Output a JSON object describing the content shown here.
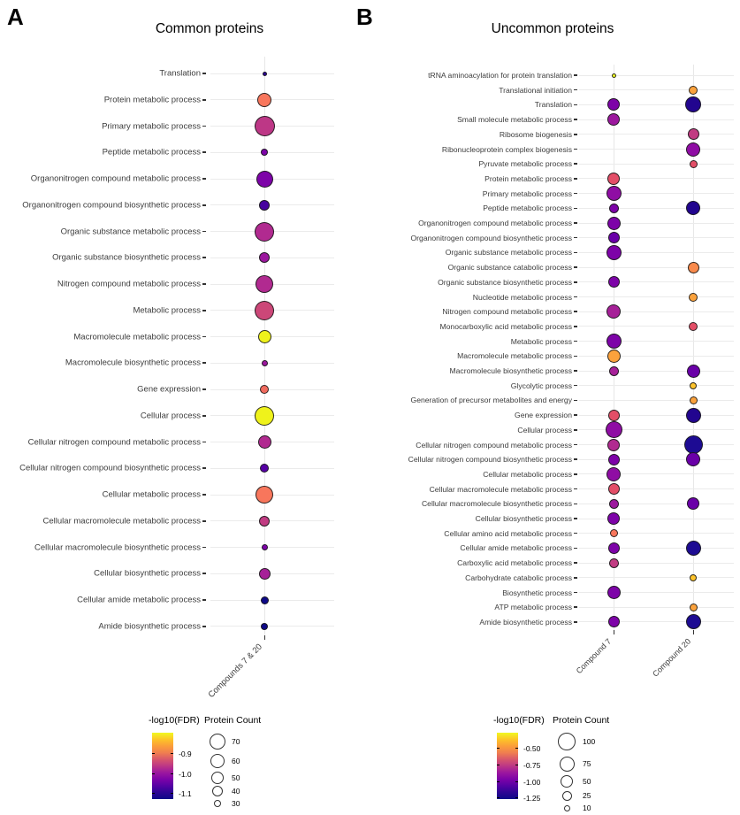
{
  "chart_data": [
    {
      "type": "scatter",
      "panel_label": "A",
      "title": "Common proteins",
      "xlabel": "",
      "ylabel": "",
      "x_categories": [
        "Compounds 7 & 20"
      ],
      "legend_position": "bottom-left",
      "grid": true,
      "color_legend": {
        "title": "-log10(FDR)",
        "tick_labels": [
          "-0.9",
          "-1.0",
          "-1.1"
        ],
        "gradient": [
          "#F0F921",
          "#FDC527",
          "#FB9E3A",
          "#F07F4F",
          "#D8576B",
          "#BD3786",
          "#9C179E",
          "#7D03A8",
          "#5601A4",
          "#2D0594",
          "#0D0887"
        ]
      },
      "size_legend": {
        "title": "Protein Count",
        "values": [
          "70",
          "60",
          "50",
          "40",
          "30"
        ]
      },
      "rows": [
        {
          "label": "Translation",
          "values": [
            {
              "protein_count": 25,
              "neglog10_fdr": -1.14,
              "color": "#2A0593",
              "d": 5
            }
          ]
        },
        {
          "label": "Protein metabolic process",
          "values": [
            {
              "protein_count": 60,
              "neglog10_fdr": -0.93,
              "color": "#F8765C",
              "d": 16
            }
          ]
        },
        {
          "label": "Primary metabolic process",
          "values": [
            {
              "protein_count": 85,
              "neglog10_fdr": -1.01,
              "color": "#BD3786",
              "d": 23
            }
          ]
        },
        {
          "label": "Peptide metabolic process",
          "values": [
            {
              "protein_count": 30,
              "neglog10_fdr": -1.08,
              "color": "#7D03A8",
              "d": 8
            }
          ]
        },
        {
          "label": "Organonitrogen compound metabolic process",
          "values": [
            {
              "protein_count": 72,
              "neglog10_fdr": -1.08,
              "color": "#7D03A8",
              "d": 19
            }
          ]
        },
        {
          "label": "Organonitrogen compound biosynthetic process",
          "values": [
            {
              "protein_count": 40,
              "neglog10_fdr": -1.12,
              "color": "#47039F",
              "d": 12
            }
          ]
        },
        {
          "label": "Organic substance metabolic process",
          "values": [
            {
              "protein_count": 82,
              "neglog10_fdr": -1.03,
              "color": "#B12A90",
              "d": 22
            }
          ]
        },
        {
          "label": "Organic substance biosynthetic process",
          "values": [
            {
              "protein_count": 40,
              "neglog10_fdr": -1.05,
              "color": "#9C179E",
              "d": 12
            }
          ]
        },
        {
          "label": "Nitrogen compound metabolic process",
          "values": [
            {
              "protein_count": 75,
              "neglog10_fdr": -1.03,
              "color": "#B12A90",
              "d": 20
            }
          ]
        },
        {
          "label": "Metabolic process",
          "values": [
            {
              "protein_count": 82,
              "neglog10_fdr": -1.0,
              "color": "#CC4778",
              "d": 22
            }
          ]
        },
        {
          "label": "Macromolecule metabolic process",
          "values": [
            {
              "protein_count": 55,
              "neglog10_fdr": -0.84,
              "color": "#EFF21B",
              "d": 15
            }
          ]
        },
        {
          "label": "Macromolecule biosynthetic process",
          "values": [
            {
              "protein_count": 28,
              "neglog10_fdr": -1.05,
              "color": "#9C179E",
              "d": 7
            }
          ]
        },
        {
          "label": "Gene expression",
          "values": [
            {
              "protein_count": 35,
              "neglog10_fdr": -0.93,
              "color": "#F06A5E",
              "d": 10
            }
          ]
        },
        {
          "label": "Cellular process",
          "values": [
            {
              "protein_count": 82,
              "neglog10_fdr": -0.83,
              "color": "#EFF21B",
              "d": 22
            }
          ]
        },
        {
          "label": "Cellular nitrogen compound metabolic process",
          "values": [
            {
              "protein_count": 55,
              "neglog10_fdr": -1.03,
              "color": "#B12A90",
              "d": 15
            }
          ]
        },
        {
          "label": "Cellular nitrogen compound biosynthetic process",
          "values": [
            {
              "protein_count": 35,
              "neglog10_fdr": -1.1,
              "color": "#5601A4",
              "d": 10
            }
          ]
        },
        {
          "label": "Cellular metabolic process",
          "values": [
            {
              "protein_count": 75,
              "neglog10_fdr": -0.92,
              "color": "#F8765C",
              "d": 20
            }
          ]
        },
        {
          "label": "Cellular macromolecule metabolic process",
          "values": [
            {
              "protein_count": 42,
              "neglog10_fdr": -1.0,
              "color": "#C13B82",
              "d": 12
            }
          ]
        },
        {
          "label": "Cellular macromolecule biosynthetic process",
          "values": [
            {
              "protein_count": 28,
              "neglog10_fdr": -1.08,
              "color": "#7D03A8",
              "d": 7
            }
          ]
        },
        {
          "label": "Cellular biosynthetic process",
          "values": [
            {
              "protein_count": 45,
              "neglog10_fdr": -1.04,
              "color": "#A62098",
              "d": 13
            }
          ]
        },
        {
          "label": "Cellular amide metabolic process",
          "values": [
            {
              "protein_count": 32,
              "neglog10_fdr": -1.16,
              "color": "#0D0887",
              "d": 9
            }
          ]
        },
        {
          "label": "Amide biosynthetic process",
          "values": [
            {
              "protein_count": 30,
              "neglog10_fdr": -1.16,
              "color": "#0D0887",
              "d": 8
            }
          ]
        }
      ]
    },
    {
      "type": "scatter",
      "panel_label": "B",
      "title": "Uncommon proteins",
      "xlabel": "",
      "ylabel": "",
      "x_categories": [
        "Compound 7",
        "Compound 20"
      ],
      "legend_position": "bottom-left",
      "grid": true,
      "color_legend": {
        "title": "-log10(FDR)",
        "tick_labels": [
          "-0.50",
          "-0.75",
          "-1.00",
          "-1.25"
        ],
        "gradient": [
          "#F0F921",
          "#FDC527",
          "#FB9E3A",
          "#F07F4F",
          "#D8576B",
          "#BD3786",
          "#9C179E",
          "#7D03A8",
          "#5601A4",
          "#2D0594",
          "#0D0887"
        ]
      },
      "size_legend": {
        "title": "Protein Count",
        "values": [
          "100",
          "75",
          "50",
          "25",
          "10"
        ]
      },
      "rows": [
        {
          "label": "tRNA aminoacylation for protein translation",
          "values": [
            {
              "protein_count": 8,
              "neglog10_fdr": -0.42,
              "color": "#F0F921",
              "d": 5
            },
            null
          ]
        },
        {
          "label": "Translational initiation",
          "values": [
            null,
            {
              "protein_count": 22,
              "neglog10_fdr": -0.6,
              "color": "#FBA23C",
              "d": 10
            }
          ]
        },
        {
          "label": "Translation",
          "values": [
            {
              "protein_count": 45,
              "neglog10_fdr": -1.1,
              "color": "#7D03A8",
              "d": 14
            },
            {
              "protein_count": 75,
              "neglog10_fdr": -1.28,
              "color": "#22058F",
              "d": 18
            }
          ]
        },
        {
          "label": "Small molecule metabolic process",
          "values": [
            {
              "protein_count": 45,
              "neglog10_fdr": -1.02,
              "color": "#9C179E",
              "d": 14
            },
            null
          ]
        },
        {
          "label": "Ribosome biogenesis",
          "values": [
            null,
            {
              "protein_count": 40,
              "neglog10_fdr": -0.92,
              "color": "#C13B82",
              "d": 13
            }
          ]
        },
        {
          "label": "Ribonucleoprotein complex biogenesis",
          "values": [
            null,
            {
              "protein_count": 58,
              "neglog10_fdr": -1.05,
              "color": "#8F0DA4",
              "d": 16
            }
          ]
        },
        {
          "label": "Pyruvate metabolic process",
          "values": [
            null,
            {
              "protein_count": 18,
              "neglog10_fdr": -0.8,
              "color": "#E34E67",
              "d": 9
            }
          ]
        },
        {
          "label": "Protein metabolic process",
          "values": [
            {
              "protein_count": 48,
              "neglog10_fdr": -0.8,
              "color": "#E34E67",
              "d": 14
            },
            null
          ]
        },
        {
          "label": "Primary metabolic process",
          "values": [
            {
              "protein_count": 65,
              "neglog10_fdr": -1.05,
              "color": "#8F0DA4",
              "d": 17
            },
            null
          ]
        },
        {
          "label": "Peptide metabolic process",
          "values": [
            {
              "protein_count": 28,
              "neglog10_fdr": -1.1,
              "color": "#7D03A8",
              "d": 11
            },
            {
              "protein_count": 58,
              "neglog10_fdr": -1.28,
              "color": "#22058F",
              "d": 16
            }
          ]
        },
        {
          "label": "Organonitrogen compound metabolic process",
          "values": [
            {
              "protein_count": 58,
              "neglog10_fdr": -1.08,
              "color": "#7D03A8",
              "d": 15
            },
            null
          ]
        },
        {
          "label": "Organonitrogen compound biosynthetic process",
          "values": [
            {
              "protein_count": 40,
              "neglog10_fdr": -1.12,
              "color": "#6A00A8",
              "d": 13
            },
            null
          ]
        },
        {
          "label": "Organic substance metabolic process",
          "values": [
            {
              "protein_count": 68,
              "neglog10_fdr": -1.08,
              "color": "#7D03A8",
              "d": 17
            },
            null
          ]
        },
        {
          "label": "Organic substance catabolic process",
          "values": [
            null,
            {
              "protein_count": 40,
              "neglog10_fdr": -0.68,
              "color": "#F98A4C",
              "d": 13
            }
          ]
        },
        {
          "label": "Organic substance biosynthetic process",
          "values": [
            {
              "protein_count": 40,
              "neglog10_fdr": -1.1,
              "color": "#7D03A8",
              "d": 13
            },
            null
          ]
        },
        {
          "label": "Nucleotide metabolic process",
          "values": [
            null,
            {
              "protein_count": 22,
              "neglog10_fdr": -0.55,
              "color": "#FBA23C",
              "d": 10
            }
          ]
        },
        {
          "label": "Nitrogen compound metabolic process",
          "values": [
            {
              "protein_count": 62,
              "neglog10_fdr": -1.0,
              "color": "#A62098",
              "d": 16
            },
            null
          ]
        },
        {
          "label": "Monocarboxylic acid metabolic process",
          "values": [
            null,
            {
              "protein_count": 22,
              "neglog10_fdr": -0.8,
              "color": "#E34E67",
              "d": 10
            }
          ]
        },
        {
          "label": "Metabolic process",
          "values": [
            {
              "protein_count": 68,
              "neglog10_fdr": -1.08,
              "color": "#7D03A8",
              "d": 17
            },
            null
          ]
        },
        {
          "label": "Macromolecule metabolic process",
          "values": [
            {
              "protein_count": 55,
              "neglog10_fdr": -0.58,
              "color": "#FBA23C",
              "d": 15
            },
            null
          ]
        },
        {
          "label": "Macromolecule biosynthetic process",
          "values": [
            {
              "protein_count": 28,
              "neglog10_fdr": -1.0,
              "color": "#A62098",
              "d": 11
            },
            {
              "protein_count": 52,
              "neglog10_fdr": -1.12,
              "color": "#6A00A8",
              "d": 15
            }
          ]
        },
        {
          "label": "Glycolytic process",
          "values": [
            null,
            {
              "protein_count": 12,
              "neglog10_fdr": -0.5,
              "color": "#FDC32B",
              "d": 8
            }
          ]
        },
        {
          "label": "Generation of precursor metabolites and energy",
          "values": [
            null,
            {
              "protein_count": 15,
              "neglog10_fdr": -0.6,
              "color": "#FBA23C",
              "d": 9
            }
          ]
        },
        {
          "label": "Gene expression",
          "values": [
            {
              "protein_count": 40,
              "neglog10_fdr": -0.8,
              "color": "#E34E67",
              "d": 13
            },
            {
              "protein_count": 68,
              "neglog10_fdr": -1.28,
              "color": "#22058F",
              "d": 17
            }
          ]
        },
        {
          "label": "Cellular process",
          "values": [
            {
              "protein_count": 80,
              "neglog10_fdr": -1.06,
              "color": "#8F0DA4",
              "d": 19
            },
            null
          ]
        },
        {
          "label": "Cellular nitrogen compound metabolic process",
          "values": [
            {
              "protein_count": 50,
              "neglog10_fdr": -0.97,
              "color": "#B12A90",
              "d": 14
            },
            {
              "protein_count": 100,
              "neglog10_fdr": -1.33,
              "color": "#1D0B93",
              "d": 21
            }
          ]
        },
        {
          "label": "Cellular nitrogen compound biosynthetic process",
          "values": [
            {
              "protein_count": 40,
              "neglog10_fdr": -1.1,
              "color": "#7D03A8",
              "d": 13
            },
            {
              "protein_count": 58,
              "neglog10_fdr": -1.15,
              "color": "#6A00A8",
              "d": 16
            }
          ]
        },
        {
          "label": "Cellular metabolic process",
          "values": [
            {
              "protein_count": 62,
              "neglog10_fdr": -1.06,
              "color": "#8F0DA4",
              "d": 16
            },
            null
          ]
        },
        {
          "label": "Cellular macromolecule metabolic process",
          "values": [
            {
              "protein_count": 40,
              "neglog10_fdr": -0.82,
              "color": "#E34E67",
              "d": 13
            },
            null
          ]
        },
        {
          "label": "Cellular macromolecule biosynthetic process",
          "values": [
            {
              "protein_count": 28,
              "neglog10_fdr": -1.02,
              "color": "#9C179E",
              "d": 11
            },
            {
              "protein_count": 48,
              "neglog10_fdr": -1.12,
              "color": "#6A00A8",
              "d": 14
            }
          ]
        },
        {
          "label": "Cellular biosynthetic process",
          "values": [
            {
              "protein_count": 45,
              "neglog10_fdr": -1.08,
              "color": "#7D03A8",
              "d": 14
            },
            null
          ]
        },
        {
          "label": "Cellular amino acid metabolic process",
          "values": [
            {
              "protein_count": 18,
              "neglog10_fdr": -0.7,
              "color": "#F8765C",
              "d": 9
            },
            null
          ]
        },
        {
          "label": "Cellular amide metabolic process",
          "values": [
            {
              "protein_count": 38,
              "neglog10_fdr": -1.1,
              "color": "#7D03A8",
              "d": 13
            },
            {
              "protein_count": 68,
              "neglog10_fdr": -1.3,
              "color": "#1D0B93",
              "d": 17
            }
          ]
        },
        {
          "label": "Carboxylic acid metabolic process",
          "values": [
            {
              "protein_count": 28,
              "neglog10_fdr": -0.95,
              "color": "#C13B82",
              "d": 11
            },
            null
          ]
        },
        {
          "label": "Carbohydrate catabolic process",
          "values": [
            null,
            {
              "protein_count": 12,
              "neglog10_fdr": -0.5,
              "color": "#FDC32B",
              "d": 8
            }
          ]
        },
        {
          "label": "Biosynthetic process",
          "values": [
            {
              "protein_count": 52,
              "neglog10_fdr": -1.08,
              "color": "#7D03A8",
              "d": 15
            },
            null
          ]
        },
        {
          "label": "ATP metabolic process",
          "values": [
            null,
            {
              "protein_count": 15,
              "neglog10_fdr": -0.62,
              "color": "#FBA23C",
              "d": 9
            }
          ]
        },
        {
          "label": "Amide biosynthetic process",
          "values": [
            {
              "protein_count": 38,
              "neglog10_fdr": -1.1,
              "color": "#7D03A8",
              "d": 13
            },
            {
              "protein_count": 65,
              "neglog10_fdr": -1.3,
              "color": "#1D0B93",
              "d": 17
            }
          ]
        }
      ]
    }
  ]
}
